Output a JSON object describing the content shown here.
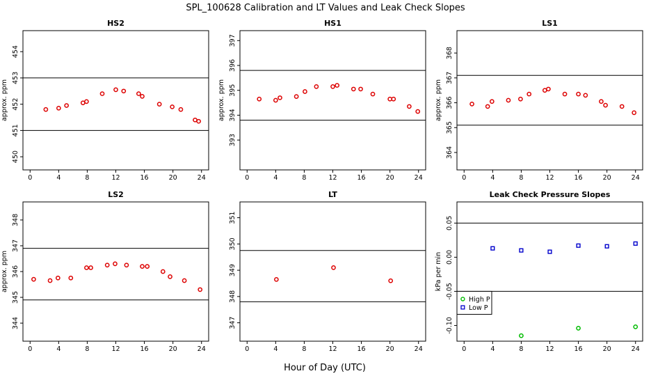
{
  "figure": {
    "title": "SPL_100628  Calibration and LT Values and Leak Check Slopes",
    "xlabel": "Hour of Day (UTC)"
  },
  "chart_data": [
    {
      "type": "scatter",
      "title": "HS2",
      "ylabel": "approx. ppm",
      "xlim": [
        -1,
        25
      ],
      "ylim": [
        449.5,
        454.8
      ],
      "xticks": [
        0,
        4,
        8,
        12,
        16,
        20,
        24
      ],
      "yticks": [
        450,
        451,
        452,
        453,
        454
      ],
      "hlines": [
        451,
        453
      ],
      "series": [
        {
          "color": "#dd0000",
          "marker": "circle",
          "x": [
            2.2,
            4.0,
            5.1,
            7.4,
            7.9,
            10.1,
            12.0,
            13.1,
            15.2,
            15.7,
            18.1,
            19.9,
            21.1,
            23.1,
            23.6
          ],
          "y": [
            451.8,
            451.85,
            451.95,
            452.05,
            452.1,
            452.4,
            452.55,
            452.5,
            452.4,
            452.3,
            452.0,
            451.9,
            451.8,
            451.4,
            451.35
          ]
        }
      ]
    },
    {
      "type": "scatter",
      "title": "HS1",
      "ylabel": "approx. ppm",
      "xlim": [
        -1,
        25
      ],
      "ylim": [
        391.8,
        397.4
      ],
      "xticks": [
        0,
        4,
        8,
        12,
        16,
        20,
        24
      ],
      "yticks": [
        393,
        394,
        395,
        396,
        397
      ],
      "hlines": [
        393.8,
        395.8
      ],
      "series": [
        {
          "color": "#dd0000",
          "marker": "circle",
          "x": [
            1.7,
            4.0,
            4.6,
            6.9,
            8.1,
            9.7,
            12.0,
            12.6,
            14.9,
            15.9,
            17.6,
            20.0,
            20.5,
            22.7,
            23.9
          ],
          "y": [
            394.65,
            394.6,
            394.7,
            394.75,
            394.95,
            395.15,
            395.15,
            395.2,
            395.05,
            395.05,
            394.85,
            394.65,
            394.65,
            394.35,
            394.15
          ]
        }
      ]
    },
    {
      "type": "scatter",
      "title": "LS1",
      "ylabel": "approx. ppm",
      "xlim": [
        -1,
        25
      ],
      "ylim": [
        363.3,
        368.9
      ],
      "xticks": [
        0,
        4,
        8,
        12,
        16,
        20,
        24
      ],
      "yticks": [
        364,
        365,
        366,
        367,
        368
      ],
      "hlines": [
        365.1,
        367.1
      ],
      "series": [
        {
          "color": "#dd0000",
          "marker": "circle",
          "x": [
            1.1,
            3.3,
            3.9,
            6.2,
            7.9,
            9.1,
            11.3,
            11.8,
            14.1,
            16.0,
            17.0,
            19.2,
            19.8,
            22.1,
            23.8
          ],
          "y": [
            365.95,
            365.85,
            366.05,
            366.1,
            366.15,
            366.35,
            366.5,
            366.55,
            366.35,
            366.35,
            366.3,
            366.05,
            365.9,
            365.85,
            365.6
          ]
        }
      ]
    },
    {
      "type": "scatter",
      "title": "LS2",
      "ylabel": "approx. ppm",
      "xlim": [
        -1,
        25
      ],
      "ylim": [
        343.3,
        348.7
      ],
      "xticks": [
        0,
        4,
        8,
        12,
        16,
        20,
        24
      ],
      "yticks": [
        344,
        345,
        346,
        347,
        348
      ],
      "hlines": [
        344.9,
        346.9
      ],
      "series": [
        {
          "color": "#dd0000",
          "marker": "circle",
          "x": [
            0.5,
            2.8,
            3.9,
            5.7,
            7.9,
            8.5,
            10.8,
            11.9,
            13.5,
            15.7,
            16.4,
            18.6,
            19.6,
            21.6,
            23.8
          ],
          "y": [
            345.7,
            345.65,
            345.75,
            345.75,
            346.15,
            346.15,
            346.25,
            346.3,
            346.25,
            346.2,
            346.2,
            346.0,
            345.8,
            345.65,
            345.3
          ]
        }
      ]
    },
    {
      "type": "scatter",
      "title": "LT",
      "ylabel": "",
      "xlim": [
        -1,
        25
      ],
      "ylim": [
        346.3,
        351.6
      ],
      "xticks": [
        0,
        4,
        8,
        12,
        16,
        20,
        24
      ],
      "yticks": [
        347,
        348,
        349,
        350,
        351
      ],
      "hlines": [
        347.8,
        349.75
      ],
      "series": [
        {
          "color": "#dd0000",
          "marker": "circle",
          "x": [
            4.1,
            12.1,
            20.1
          ],
          "y": [
            348.65,
            349.1,
            348.6
          ]
        }
      ]
    },
    {
      "type": "scatter",
      "title": "Leak Check Pressure Slopes",
      "ylabel": "kPa per min",
      "xlim": [
        -1,
        25
      ],
      "ylim": [
        -0.123,
        0.081
      ],
      "xticks": [
        0,
        4,
        8,
        12,
        16,
        20,
        24
      ],
      "yticks": [
        -0.1,
        -0.05,
        0.0,
        0.05
      ],
      "ytick_labels": [
        "-0.10",
        "-0.05",
        "0.00",
        "0.05"
      ],
      "hlines": [
        -0.05,
        0.05
      ],
      "legend": "left",
      "series": [
        {
          "name": "High P",
          "color": "#00bb00",
          "marker": "circle",
          "x": [
            8,
            16,
            24
          ],
          "y": [
            -0.115,
            -0.104,
            -0.102
          ]
        },
        {
          "name": "Low P",
          "color": "#0000cc",
          "marker": "square",
          "x": [
            4,
            8,
            12,
            16,
            20,
            24
          ],
          "y": [
            0.013,
            0.01,
            0.008,
            0.017,
            0.016,
            0.02
          ]
        }
      ]
    }
  ]
}
